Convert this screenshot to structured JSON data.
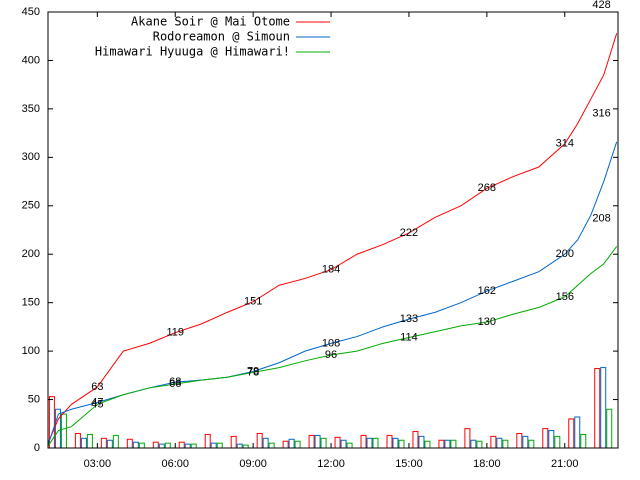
{
  "chart_data": {
    "type": "line",
    "x": [
      1.1,
      1.5,
      2,
      3,
      4,
      5,
      6,
      7,
      8,
      9,
      10,
      11,
      12,
      13,
      14,
      15,
      16,
      17,
      18,
      19,
      20,
      21,
      21.5,
      22,
      22.5,
      23
    ],
    "xlim": [
      1.1,
      23.05
    ],
    "xticks": [
      {
        "value": 3,
        "label": "03:00"
      },
      {
        "value": 6,
        "label": "06:00"
      },
      {
        "value": 9,
        "label": "09:00"
      },
      {
        "value": 12,
        "label": "12:00"
      },
      {
        "value": 15,
        "label": "15:00"
      },
      {
        "value": 18,
        "label": "18:00"
      },
      {
        "value": 21,
        "label": "21:00"
      }
    ],
    "ylim": [
      0,
      450
    ],
    "yticks": [
      0,
      50,
      100,
      150,
      200,
      250,
      300,
      350,
      400,
      450
    ],
    "bar_x": [
      1,
      2,
      3,
      4,
      5,
      6,
      7,
      8,
      9,
      10,
      11,
      12,
      13,
      14,
      15,
      16,
      17,
      18,
      19,
      20,
      21,
      22
    ],
    "legend": "top-left",
    "series": [
      {
        "name": "Akane Soir @ Mai Otome",
        "color": "#ff0000",
        "values": [
          5,
          30,
          45,
          63,
          100,
          108,
          119,
          128,
          140,
          151,
          168,
          175,
          184,
          200,
          210,
          222,
          238,
          250,
          268,
          280,
          290,
          314,
          335,
          360,
          385,
          428
        ],
        "value_labels": [
          null,
          null,
          null,
          "63",
          null,
          null,
          "119",
          null,
          null,
          "151",
          null,
          null,
          "184",
          null,
          null,
          "222",
          null,
          null,
          "268",
          null,
          null,
          "314",
          null,
          null,
          null,
          "428"
        ],
        "bar_values": [
          53,
          15,
          10,
          9,
          6,
          6,
          14,
          12,
          15,
          7,
          13,
          11,
          13,
          13,
          17,
          8,
          20,
          12,
          15,
          20,
          30,
          82
        ]
      },
      {
        "name": "Rodoreamon @ Simoun",
        "color": "#0066cc",
        "values": [
          3,
          35,
          40,
          47,
          55,
          62,
          68,
          70,
          73,
          79,
          88,
          100,
          108,
          115,
          125,
          133,
          140,
          150,
          162,
          172,
          182,
          200,
          215,
          240,
          275,
          316
        ],
        "value_labels": [
          null,
          null,
          null,
          "47",
          null,
          null,
          "68",
          null,
          null,
          "79",
          null,
          null,
          "108",
          null,
          null,
          "133",
          null,
          null,
          "162",
          null,
          null,
          "200",
          null,
          null,
          null,
          "316"
        ],
        "bar_values": [
          40,
          10,
          8,
          6,
          4,
          4,
          5,
          4,
          10,
          9,
          13,
          8,
          10,
          10,
          12,
          8,
          8,
          10,
          12,
          18,
          32,
          83
        ]
      },
      {
        "name": "Himawari Hyuuga @ Himawari!",
        "color": "#00aa00",
        "values": [
          2,
          18,
          22,
          45,
          55,
          62,
          66,
          70,
          73,
          78,
          83,
          90,
          96,
          100,
          108,
          114,
          120,
          126,
          130,
          138,
          145,
          156,
          168,
          180,
          190,
          208
        ],
        "value_labels": [
          null,
          null,
          null,
          "45",
          null,
          null,
          "66",
          null,
          null,
          "78",
          null,
          null,
          "96",
          null,
          null,
          "114",
          null,
          null,
          "130",
          null,
          null,
          "156",
          null,
          null,
          null,
          "208"
        ],
        "bar_values": [
          35,
          14,
          13,
          5,
          5,
          4,
          5,
          3,
          5,
          7,
          10,
          5,
          10,
          8,
          7,
          8,
          7,
          8,
          8,
          12,
          14,
          40
        ]
      }
    ]
  }
}
